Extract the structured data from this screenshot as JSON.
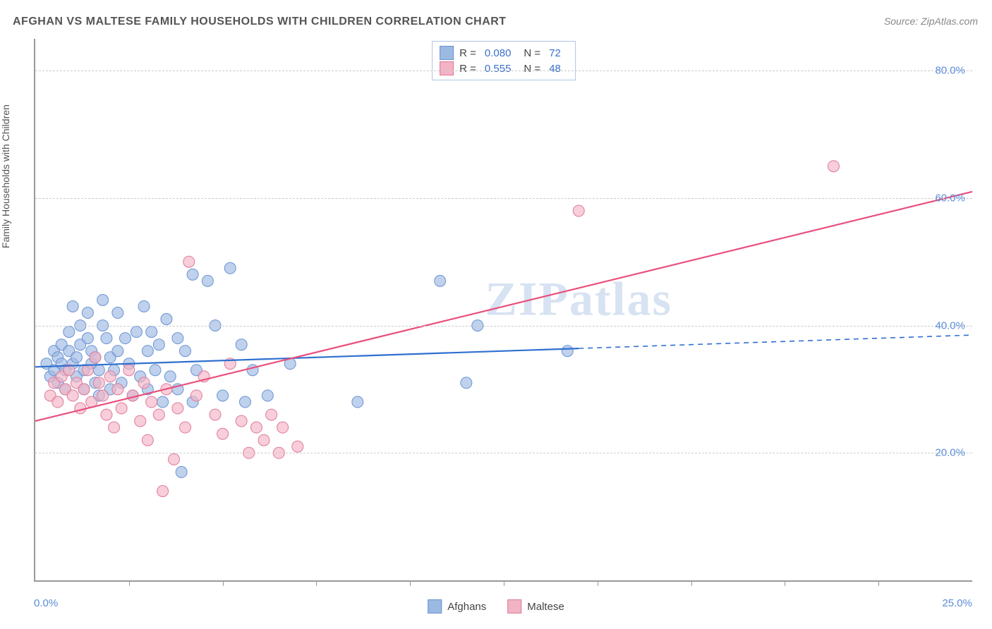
{
  "title": "AFGHAN VS MALTESE FAMILY HOUSEHOLDS WITH CHILDREN CORRELATION CHART",
  "source": "Source: ZipAtlas.com",
  "watermark": "ZIPatlas",
  "ylabel": "Family Households with Children",
  "chart": {
    "type": "scatter",
    "xlim": [
      0,
      25
    ],
    "ylim": [
      0,
      85
    ],
    "x_ticks_minor": [
      2.5,
      5,
      7.5,
      10,
      12.5,
      15,
      17.5,
      20,
      22.5
    ],
    "y_gridlines": [
      20,
      40,
      60,
      80
    ],
    "y_tick_labels": [
      "20.0%",
      "40.0%",
      "60.0%",
      "80.0%"
    ],
    "x_left_label": "0.0%",
    "x_right_label": "25.0%",
    "background_color": "#ffffff",
    "grid_color": "#cccccc",
    "axis_color": "#999999",
    "tick_label_color": "#5b8dd6",
    "text_color": "#555555",
    "marker_radius": 8,
    "marker_stroke_width": 1,
    "trend_line_width": 2.2,
    "series": {
      "afghans": {
        "label": "Afghans",
        "fill": "#9cb9e2",
        "stroke": "#6a93d4",
        "line_color": "#2f6fd0",
        "fill_opacity": 0.65,
        "R": "0.080",
        "N": "72",
        "trend": {
          "x1": 0,
          "y1": 33.5,
          "x2": 25,
          "y2": 38.5,
          "solid_until_x": 14.5
        },
        "points": [
          [
            0.3,
            34
          ],
          [
            0.4,
            32
          ],
          [
            0.5,
            33
          ],
          [
            0.5,
            36
          ],
          [
            0.6,
            31
          ],
          [
            0.6,
            35
          ],
          [
            0.7,
            34
          ],
          [
            0.7,
            37
          ],
          [
            0.8,
            33
          ],
          [
            0.8,
            30
          ],
          [
            0.9,
            36
          ],
          [
            0.9,
            39
          ],
          [
            1.0,
            34
          ],
          [
            1.0,
            43
          ],
          [
            1.1,
            35
          ],
          [
            1.1,
            32
          ],
          [
            1.2,
            37
          ],
          [
            1.2,
            40
          ],
          [
            1.3,
            33
          ],
          [
            1.3,
            30
          ],
          [
            1.4,
            42
          ],
          [
            1.4,
            38
          ],
          [
            1.5,
            34
          ],
          [
            1.5,
            36
          ],
          [
            1.6,
            31
          ],
          [
            1.6,
            35
          ],
          [
            1.7,
            29
          ],
          [
            1.7,
            33
          ],
          [
            1.8,
            40
          ],
          [
            1.8,
            44
          ],
          [
            1.9,
            38
          ],
          [
            2.0,
            35
          ],
          [
            2.0,
            30
          ],
          [
            2.1,
            33
          ],
          [
            2.2,
            42
          ],
          [
            2.2,
            36
          ],
          [
            2.3,
            31
          ],
          [
            2.4,
            38
          ],
          [
            2.5,
            34
          ],
          [
            2.6,
            29
          ],
          [
            2.7,
            39
          ],
          [
            2.8,
            32
          ],
          [
            2.9,
            43
          ],
          [
            3.0,
            36
          ],
          [
            3.0,
            30
          ],
          [
            3.1,
            39
          ],
          [
            3.2,
            33
          ],
          [
            3.3,
            37
          ],
          [
            3.4,
            28
          ],
          [
            3.5,
            41
          ],
          [
            3.6,
            32
          ],
          [
            3.8,
            38
          ],
          [
            3.8,
            30
          ],
          [
            3.9,
            17
          ],
          [
            4.0,
            36
          ],
          [
            4.2,
            28
          ],
          [
            4.2,
            48
          ],
          [
            4.3,
            33
          ],
          [
            4.6,
            47
          ],
          [
            4.8,
            40
          ],
          [
            5.0,
            29
          ],
          [
            5.2,
            49
          ],
          [
            5.5,
            37
          ],
          [
            5.6,
            28
          ],
          [
            5.8,
            33
          ],
          [
            6.2,
            29
          ],
          [
            6.8,
            34
          ],
          [
            8.6,
            28
          ],
          [
            10.8,
            47
          ],
          [
            11.5,
            31
          ],
          [
            11.8,
            40
          ],
          [
            14.2,
            36
          ]
        ]
      },
      "maltese": {
        "label": "Maltese",
        "fill": "#f2b3c4",
        "stroke": "#e07a9a",
        "line_color": "#e94f7c",
        "fill_opacity": 0.65,
        "R": "0.555",
        "N": "48",
        "trend": {
          "x1": 0,
          "y1": 25,
          "x2": 25,
          "y2": 61,
          "solid_until_x": 25
        },
        "points": [
          [
            0.4,
            29
          ],
          [
            0.5,
            31
          ],
          [
            0.6,
            28
          ],
          [
            0.7,
            32
          ],
          [
            0.8,
            30
          ],
          [
            0.9,
            33
          ],
          [
            1.0,
            29
          ],
          [
            1.1,
            31
          ],
          [
            1.2,
            27
          ],
          [
            1.3,
            30
          ],
          [
            1.4,
            33
          ],
          [
            1.5,
            28
          ],
          [
            1.6,
            35
          ],
          [
            1.7,
            31
          ],
          [
            1.8,
            29
          ],
          [
            1.9,
            26
          ],
          [
            2.0,
            32
          ],
          [
            2.1,
            24
          ],
          [
            2.2,
            30
          ],
          [
            2.3,
            27
          ],
          [
            2.5,
            33
          ],
          [
            2.6,
            29
          ],
          [
            2.8,
            25
          ],
          [
            2.9,
            31
          ],
          [
            3.0,
            22
          ],
          [
            3.1,
            28
          ],
          [
            3.3,
            26
          ],
          [
            3.4,
            14
          ],
          [
            3.5,
            30
          ],
          [
            3.7,
            19
          ],
          [
            3.8,
            27
          ],
          [
            4.0,
            24
          ],
          [
            4.1,
            50
          ],
          [
            4.3,
            29
          ],
          [
            4.5,
            32
          ],
          [
            4.8,
            26
          ],
          [
            5.0,
            23
          ],
          [
            5.2,
            34
          ],
          [
            5.5,
            25
          ],
          [
            5.7,
            20
          ],
          [
            5.9,
            24
          ],
          [
            6.1,
            22
          ],
          [
            6.3,
            26
          ],
          [
            6.5,
            20
          ],
          [
            6.6,
            24
          ],
          [
            7.0,
            21
          ],
          [
            14.5,
            58
          ],
          [
            21.3,
            65
          ]
        ]
      }
    }
  },
  "legend": {
    "swatch_blue_fill": "#9cb9e2",
    "swatch_blue_stroke": "#6a93d4",
    "swatch_pink_fill": "#f2b3c4",
    "swatch_pink_stroke": "#e07a9a",
    "r_label": "R =",
    "n_label": "N ="
  }
}
